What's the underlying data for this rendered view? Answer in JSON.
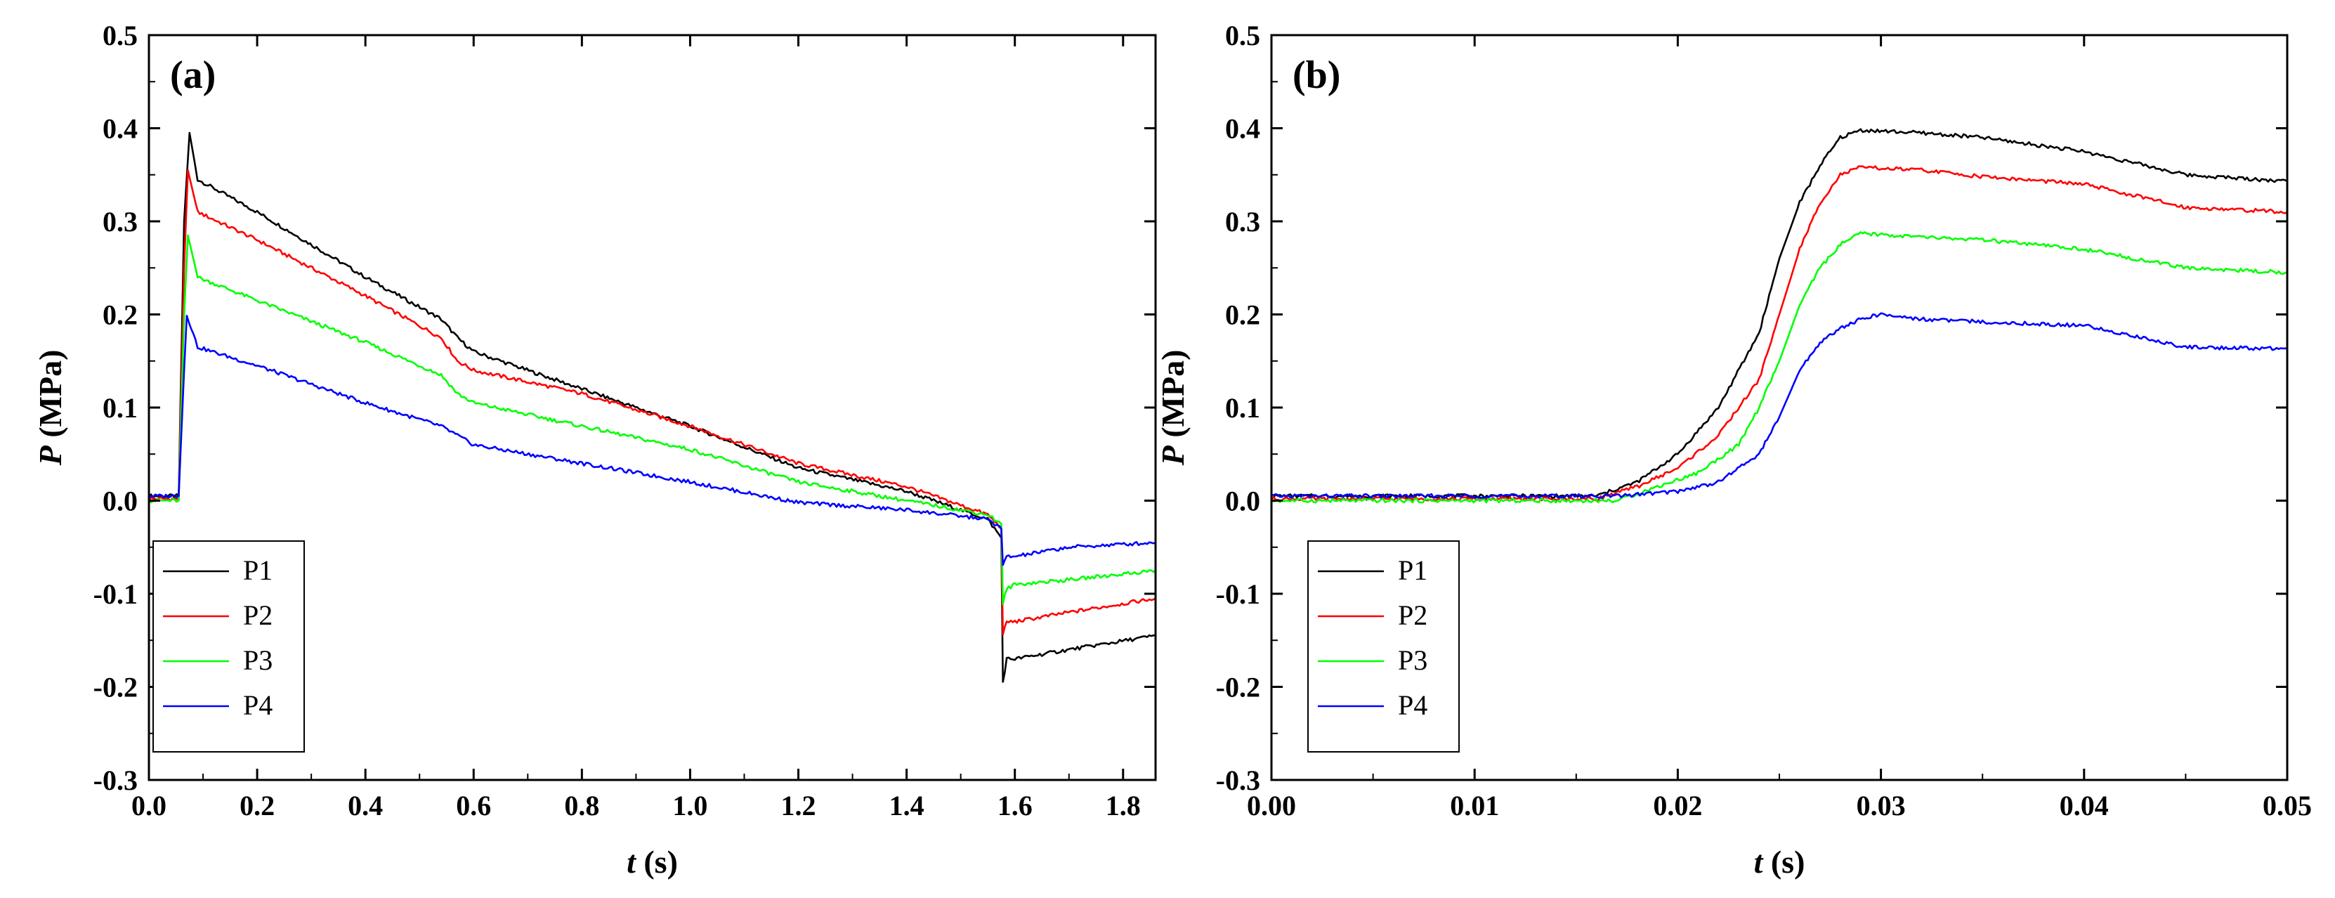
{
  "chart_data": [
    {
      "type": "line",
      "panel_label": "(a)",
      "xlabel_italic": "t",
      "xlabel_rest": " (s)",
      "ylabel_italic": "P",
      "ylabel_rest": " (MPa)",
      "xlim": [
        0.0,
        1.86
      ],
      "ylim": [
        -0.3,
        0.5
      ],
      "x_ticks": [
        0.0,
        0.2,
        0.4,
        0.6,
        0.8,
        1.0,
        1.2,
        1.4,
        1.6,
        1.8
      ],
      "x_tick_labels": [
        "0.0",
        "0.2",
        "0.4",
        "0.6",
        "0.8",
        "1.0",
        "1.2",
        "1.4",
        "1.6",
        "1.8"
      ],
      "y_ticks": [
        -0.3,
        -0.2,
        -0.1,
        0.0,
        0.1,
        0.2,
        0.3,
        0.4,
        0.5
      ],
      "y_tick_labels": [
        "-0.3",
        "-0.2",
        "-0.1",
        "0.0",
        "0.1",
        "0.2",
        "0.3",
        "0.4",
        "0.5"
      ],
      "grid": false,
      "legend_position": "bottom-left",
      "series": [
        {
          "name": "P1",
          "color": "#000000",
          "x": [
            0.0,
            0.055,
            0.065,
            0.075,
            0.09,
            0.2,
            0.4,
            0.54,
            0.57,
            0.6,
            0.8,
            1.0,
            1.2,
            1.4,
            1.55,
            1.575,
            1.578,
            1.585,
            1.6,
            1.7,
            1.86
          ],
          "y": [
            0.005,
            0.005,
            0.3,
            0.395,
            0.345,
            0.31,
            0.24,
            0.195,
            0.175,
            0.16,
            0.12,
            0.08,
            0.035,
            0.01,
            -0.02,
            -0.04,
            -0.195,
            -0.17,
            -0.17,
            -0.16,
            -0.145
          ]
        },
        {
          "name": "P2",
          "color": "#ff0000",
          "x": [
            0.0,
            0.055,
            0.065,
            0.072,
            0.09,
            0.2,
            0.4,
            0.54,
            0.57,
            0.6,
            0.8,
            1.0,
            1.2,
            1.4,
            1.55,
            1.575,
            1.578,
            1.585,
            1.6,
            1.7,
            1.86
          ],
          "y": [
            0.002,
            0.002,
            0.25,
            0.355,
            0.31,
            0.28,
            0.22,
            0.175,
            0.15,
            0.14,
            0.115,
            0.08,
            0.04,
            0.015,
            -0.015,
            -0.03,
            -0.145,
            -0.13,
            -0.13,
            -0.12,
            -0.105
          ]
        },
        {
          "name": "P3",
          "color": "#00ff00",
          "x": [
            0.0,
            0.055,
            0.065,
            0.072,
            0.09,
            0.2,
            0.4,
            0.54,
            0.57,
            0.6,
            0.8,
            1.0,
            1.2,
            1.4,
            1.55,
            1.575,
            1.578,
            1.585,
            1.6,
            1.7,
            1.86
          ],
          "y": [
            0.0,
            0.0,
            0.2,
            0.285,
            0.24,
            0.215,
            0.17,
            0.135,
            0.115,
            0.105,
            0.08,
            0.055,
            0.02,
            0.0,
            -0.015,
            -0.025,
            -0.11,
            -0.095,
            -0.09,
            -0.085,
            -0.075
          ]
        },
        {
          "name": "P4",
          "color": "#0000ff",
          "x": [
            0.0,
            0.055,
            0.065,
            0.07,
            0.09,
            0.2,
            0.4,
            0.54,
            0.57,
            0.6,
            0.8,
            1.0,
            1.2,
            1.4,
            1.55,
            1.575,
            1.578,
            1.585,
            1.6,
            1.7,
            1.86
          ],
          "y": [
            0.005,
            0.005,
            0.14,
            0.2,
            0.165,
            0.145,
            0.105,
            0.08,
            0.07,
            0.06,
            0.04,
            0.02,
            -0.002,
            -0.01,
            -0.02,
            -0.03,
            -0.07,
            -0.06,
            -0.06,
            -0.05,
            -0.045
          ]
        }
      ]
    },
    {
      "type": "line",
      "panel_label": "(b)",
      "xlabel_italic": "t",
      "xlabel_rest": " (s)",
      "ylabel_italic": "P",
      "ylabel_rest": " (MPa)",
      "xlim": [
        0.0,
        0.05
      ],
      "ylim": [
        -0.3,
        0.5
      ],
      "x_ticks": [
        0.0,
        0.01,
        0.02,
        0.03,
        0.04,
        0.05
      ],
      "x_tick_labels": [
        "0.00",
        "0.01",
        "0.02",
        "0.03",
        "0.04",
        "0.05"
      ],
      "y_ticks": [
        -0.3,
        -0.2,
        -0.1,
        0.0,
        0.1,
        0.2,
        0.3,
        0.4,
        0.5
      ],
      "y_tick_labels": [
        "-0.3",
        "-0.2",
        "-0.1",
        "0.0",
        "0.1",
        "0.2",
        "0.3",
        "0.4",
        "0.5"
      ],
      "grid": false,
      "legend_position": "bottom-left",
      "series": [
        {
          "name": "P1",
          "color": "#000000",
          "x": [
            0.0,
            0.016,
            0.018,
            0.02,
            0.022,
            0.024,
            0.025,
            0.026,
            0.027,
            0.028,
            0.029,
            0.032,
            0.035,
            0.04,
            0.045,
            0.05
          ],
          "y": [
            0.005,
            0.005,
            0.02,
            0.05,
            0.1,
            0.18,
            0.26,
            0.32,
            0.36,
            0.39,
            0.398,
            0.395,
            0.39,
            0.375,
            0.35,
            0.343
          ]
        },
        {
          "name": "P2",
          "color": "#ff0000",
          "x": [
            0.0,
            0.016,
            0.018,
            0.02,
            0.022,
            0.024,
            0.025,
            0.026,
            0.027,
            0.028,
            0.029,
            0.032,
            0.035,
            0.04,
            0.045,
            0.05
          ],
          "y": [
            0.002,
            0.002,
            0.015,
            0.035,
            0.07,
            0.13,
            0.2,
            0.27,
            0.32,
            0.35,
            0.358,
            0.355,
            0.348,
            0.34,
            0.315,
            0.31
          ]
        },
        {
          "name": "P3",
          "color": "#00ff00",
          "x": [
            0.0,
            0.017,
            0.019,
            0.021,
            0.023,
            0.024,
            0.025,
            0.026,
            0.027,
            0.028,
            0.029,
            0.032,
            0.035,
            0.04,
            0.045,
            0.05
          ],
          "y": [
            0.0,
            0.0,
            0.015,
            0.03,
            0.06,
            0.1,
            0.15,
            0.21,
            0.25,
            0.275,
            0.287,
            0.283,
            0.28,
            0.27,
            0.25,
            0.245
          ]
        },
        {
          "name": "P4",
          "color": "#0000ff",
          "x": [
            0.0,
            0.017,
            0.02,
            0.022,
            0.024,
            0.025,
            0.026,
            0.027,
            0.028,
            0.029,
            0.03,
            0.032,
            0.035,
            0.04,
            0.045,
            0.05
          ],
          "y": [
            0.005,
            0.005,
            0.01,
            0.02,
            0.05,
            0.09,
            0.14,
            0.17,
            0.185,
            0.195,
            0.2,
            0.195,
            0.192,
            0.188,
            0.165,
            0.163
          ]
        }
      ]
    }
  ]
}
